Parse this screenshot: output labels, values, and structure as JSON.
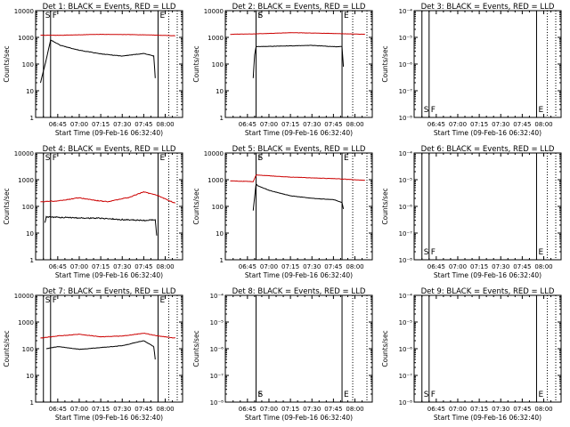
{
  "figure": {
    "ylabel": "Counts/sec",
    "xlabel": "Start Time (09-Feb-16 06:32:40)",
    "xtick_labels": [
      "06:45",
      "07:00",
      "07:15",
      "07:30",
      "07:45",
      "08:00"
    ],
    "colors": {
      "events": "#000000",
      "lld": "#cc0000",
      "axes": "#000000"
    }
  },
  "chart_data": [
    {
      "type": "line",
      "title": "Det 1: BLACK = Events, RED = LLD",
      "yscale": "log",
      "ylim": [
        1,
        10000
      ],
      "ytick_labels": [
        "1",
        "10",
        "100",
        "1000",
        "10000"
      ],
      "markers": [
        {
          "label": "S",
          "x": "06:35"
        },
        {
          "label": "F",
          "x": "06:40"
        },
        {
          "label": "E",
          "x": "07:55"
        }
      ],
      "events": {
        "x": [
          "06:33",
          "06:37",
          "06:40",
          "06:47",
          "07:00",
          "07:15",
          "07:30",
          "07:45",
          "07:52",
          "07:53"
        ],
        "y": [
          20,
          150,
          800,
          500,
          330,
          240,
          200,
          250,
          200,
          30
        ],
        "noise": 0.02
      },
      "lld": {
        "x": [
          "06:33",
          "06:47",
          "07:15",
          "07:45",
          "08:07"
        ],
        "y": [
          1200,
          1200,
          1300,
          1250,
          1150
        ],
        "noise": 0.01
      }
    },
    {
      "type": "line",
      "title": "Det 2: BLACK = Events, RED = LLD",
      "yscale": "log",
      "ylim": [
        1,
        10000
      ],
      "ytick_labels": [
        "1",
        "10",
        "100",
        "1000",
        "10000"
      ],
      "markers": [
        {
          "label": "S",
          "x": "06:51"
        },
        {
          "label": "F",
          "x": "06:51"
        },
        {
          "label": "E",
          "x": "07:51"
        }
      ],
      "events": {
        "x": [
          "06:49",
          "06:50",
          "06:51",
          "07:00",
          "07:15",
          "07:30",
          "07:45",
          "07:51",
          "07:52"
        ],
        "y": [
          30,
          220,
          450,
          460,
          480,
          500,
          450,
          450,
          80
        ],
        "noise": 0.015
      },
      "lld": {
        "x": [
          "06:33",
          "06:51",
          "07:15",
          "07:45",
          "08:07"
        ],
        "y": [
          1300,
          1350,
          1500,
          1400,
          1300
        ],
        "noise": 0.01
      }
    },
    {
      "type": "line",
      "title": "Det 3: BLACK = Events, RED = LLD",
      "yscale": "log",
      "ylim": [
        1e-08,
        0.0001
      ],
      "ytick_labels": [
        "10⁻⁸",
        "10⁻⁷",
        "10⁻⁶",
        "10⁻⁵",
        "10⁻⁴"
      ],
      "markers": [
        {
          "label": "S",
          "x": "06:35"
        },
        {
          "label": "F",
          "x": "06:40"
        },
        {
          "label": "E",
          "x": "07:55"
        }
      ],
      "events": null,
      "lld": null
    },
    {
      "type": "line",
      "title": "Det 4: BLACK = Events, RED = LLD",
      "yscale": "log",
      "ylim": [
        1,
        10000
      ],
      "ytick_labels": [
        "1",
        "10",
        "100",
        "1000",
        "10000"
      ],
      "markers": [
        {
          "label": "S",
          "x": "06:35"
        },
        {
          "label": "F",
          "x": "06:40"
        },
        {
          "label": "E",
          "x": "07:55"
        }
      ],
      "events": {
        "x": [
          "06:36",
          "06:37",
          "07:00",
          "07:15",
          "07:30",
          "07:45",
          "07:53",
          "07:54"
        ],
        "y": [
          25,
          40,
          37,
          36,
          32,
          30,
          32,
          8
        ],
        "noise": 0.05
      },
      "lld": {
        "x": [
          "06:33",
          "06:45",
          "07:00",
          "07:10",
          "07:20",
          "07:35",
          "07:45",
          "07:55",
          "08:07"
        ],
        "y": [
          150,
          160,
          210,
          170,
          150,
          220,
          350,
          250,
          130
        ],
        "noise": 0.03
      }
    },
    {
      "type": "line",
      "title": "Det 5: BLACK = Events, RED = LLD",
      "yscale": "log",
      "ylim": [
        1,
        10000
      ],
      "ytick_labels": [
        "1",
        "10",
        "100",
        "1000",
        "10000"
      ],
      "markers": [
        {
          "label": "S",
          "x": "06:51"
        },
        {
          "label": "F",
          "x": "06:51"
        },
        {
          "label": "E",
          "x": "07:51"
        }
      ],
      "events": {
        "x": [
          "06:49",
          "06:51",
          "06:52",
          "07:00",
          "07:15",
          "07:30",
          "07:45",
          "07:51",
          "07:52"
        ],
        "y": [
          70,
          700,
          600,
          400,
          250,
          200,
          180,
          140,
          80
        ],
        "noise": 0.015
      },
      "lld": {
        "x": [
          "06:33",
          "06:49",
          "06:51",
          "07:15",
          "07:45",
          "08:07"
        ],
        "y": [
          900,
          850,
          1500,
          1250,
          1100,
          950
        ],
        "noise": 0.015
      }
    },
    {
      "type": "line",
      "title": "Det 6: BLACK = Events, RED = LLD",
      "yscale": "log",
      "ylim": [
        1e-08,
        0.0001
      ],
      "ytick_labels": [
        "10⁻⁸",
        "10⁻⁷",
        "10⁻⁶",
        "10⁻⁵",
        "10⁻⁴"
      ],
      "markers": [
        {
          "label": "S",
          "x": "06:35"
        },
        {
          "label": "F",
          "x": "06:40"
        },
        {
          "label": "E",
          "x": "07:55"
        }
      ],
      "events": null,
      "lld": null
    },
    {
      "type": "line",
      "title": "Det 7: BLACK = Events, RED = LLD",
      "yscale": "log",
      "ylim": [
        1,
        10000
      ],
      "ytick_labels": [
        "1",
        "10",
        "100",
        "1000",
        "10000"
      ],
      "markers": [
        {
          "label": "S",
          "x": "06:35"
        },
        {
          "label": "F",
          "x": "06:40"
        },
        {
          "label": "E",
          "x": "07:55"
        }
      ],
      "events": {
        "x": [
          "06:37",
          "06:45",
          "07:00",
          "07:15",
          "07:30",
          "07:45",
          "07:52",
          "07:53"
        ],
        "y": [
          100,
          120,
          95,
          110,
          130,
          200,
          120,
          40
        ],
        "noise": 0.015
      },
      "lld": {
        "x": [
          "06:33",
          "06:45",
          "07:00",
          "07:15",
          "07:30",
          "07:45",
          "07:55",
          "08:07"
        ],
        "y": [
          250,
          300,
          350,
          280,
          300,
          380,
          300,
          250
        ],
        "noise": 0.02
      }
    },
    {
      "type": "line",
      "title": "Det 8: BLACK = Events, RED = LLD",
      "yscale": "log",
      "ylim": [
        1e-08,
        0.0001
      ],
      "ytick_labels": [
        "10⁻⁸",
        "10⁻⁷",
        "10⁻⁶",
        "10⁻⁵",
        "10⁻⁴"
      ],
      "markers": [
        {
          "label": "S",
          "x": "06:51"
        },
        {
          "label": "F",
          "x": "06:51"
        },
        {
          "label": "E",
          "x": "07:51"
        }
      ],
      "events": null,
      "lld": null
    },
    {
      "type": "line",
      "title": "Det 9: BLACK = Events, RED = LLD",
      "yscale": "log",
      "ylim": [
        1e-08,
        0.0001
      ],
      "ytick_labels": [
        "10⁻⁸",
        "10⁻⁷",
        "10⁻⁶",
        "10⁻⁵",
        "10⁻⁴"
      ],
      "markers": [
        {
          "label": "S",
          "x": "06:35"
        },
        {
          "label": "F",
          "x": "06:40"
        },
        {
          "label": "E",
          "x": "07:55"
        }
      ],
      "events": null,
      "lld": null
    }
  ]
}
